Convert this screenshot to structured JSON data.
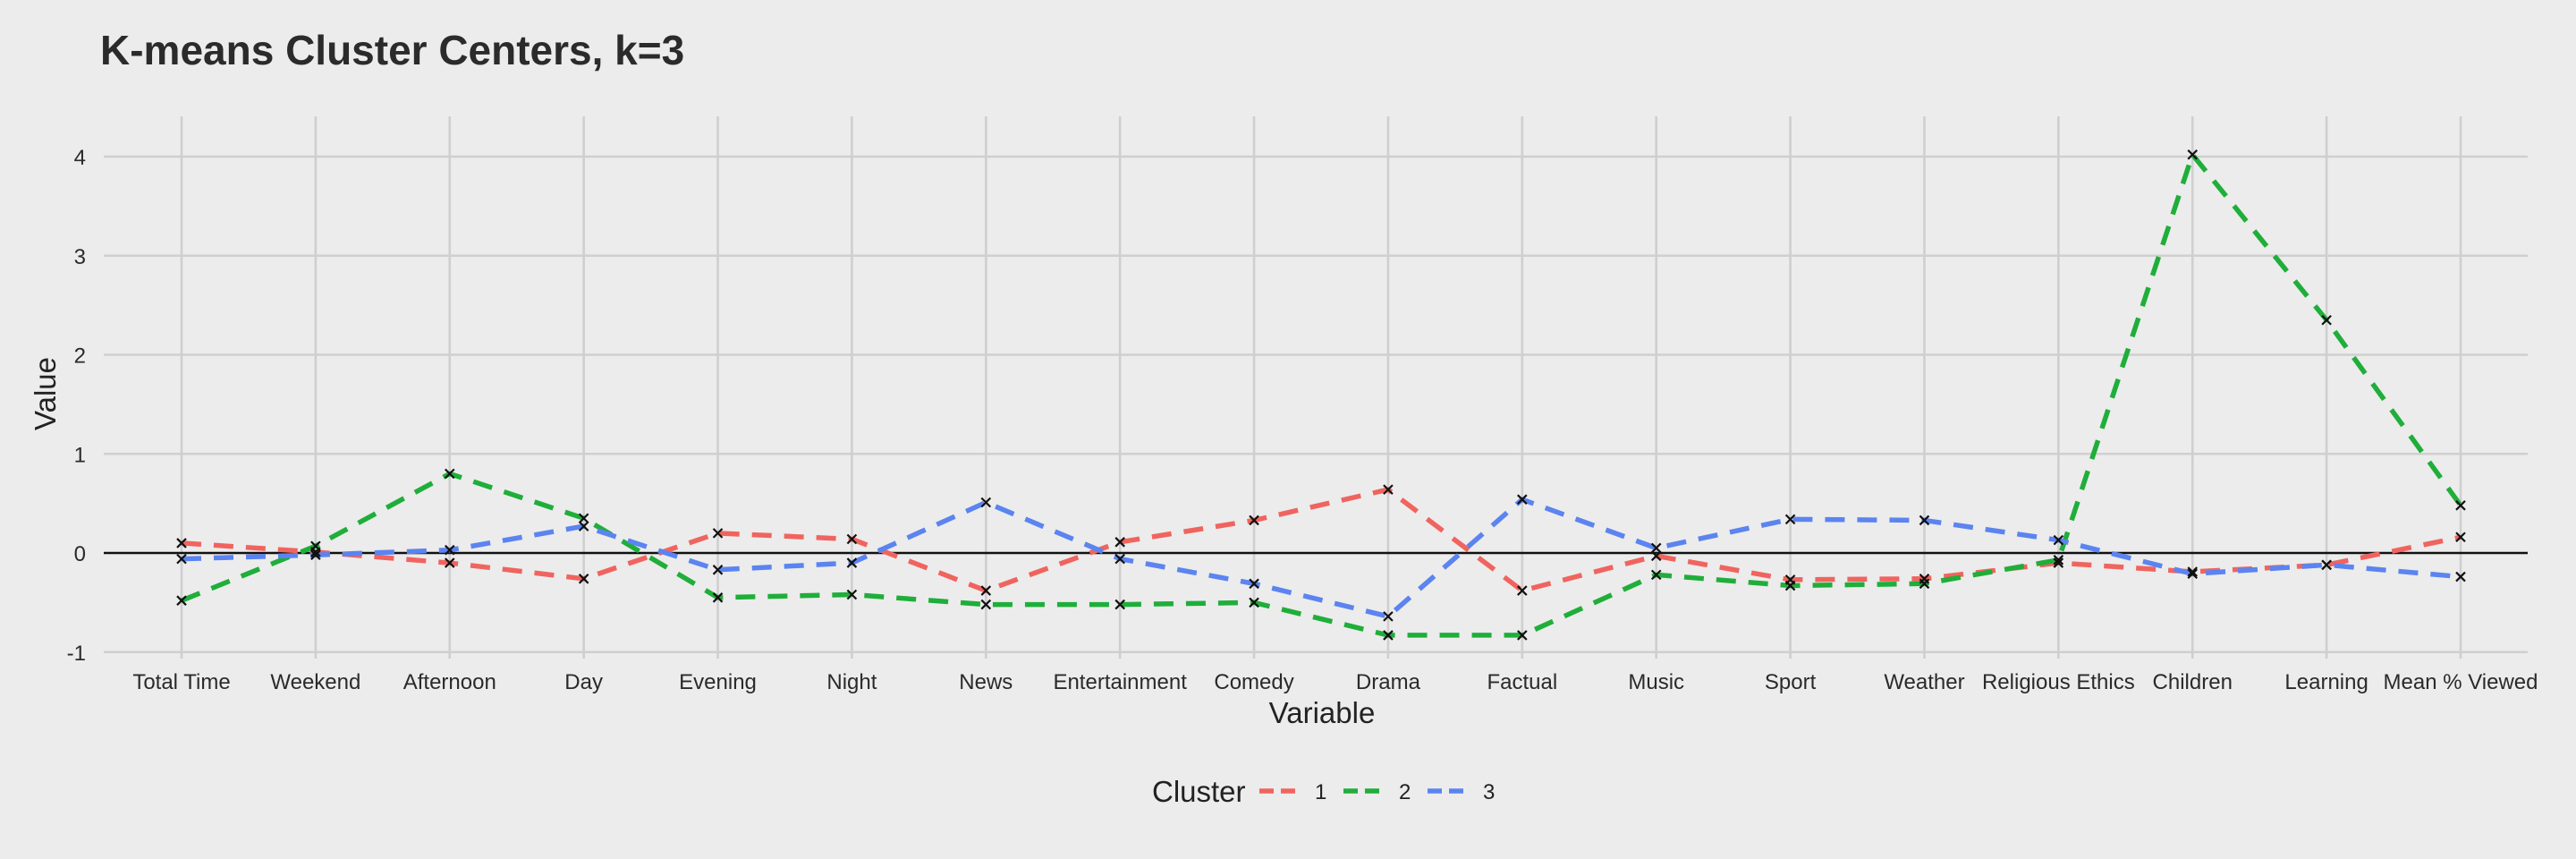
{
  "chart_data": {
    "type": "line",
    "title": "K-means Cluster Centers, k=3",
    "xlabel": "Variable",
    "ylabel": "Value",
    "ylim": [
      -1,
      4.2
    ],
    "yticks": [
      -1,
      0,
      1,
      2,
      3,
      4
    ],
    "categories": [
      "Total Time",
      "Weekend",
      "Afternoon",
      "Day",
      "Evening",
      "Night",
      "News",
      "Entertainment",
      "Comedy",
      "Drama",
      "Factual",
      "Music",
      "Sport",
      "Weather",
      "Religious Ethics",
      "Children",
      "Learning",
      "Mean % Viewed"
    ],
    "grid": true,
    "legend": {
      "title": "Cluster",
      "position": "bottom"
    },
    "series": [
      {
        "name": "1",
        "color": "#f0645f",
        "values": [
          0.1,
          0.01,
          -0.1,
          -0.26,
          0.2,
          0.14,
          -0.38,
          0.11,
          0.33,
          0.64,
          -0.38,
          -0.03,
          -0.27,
          -0.26,
          -0.1,
          -0.19,
          -0.12,
          0.16
        ]
      },
      {
        "name": "2",
        "color": "#1fae3a",
        "values": [
          -0.48,
          0.07,
          0.8,
          0.35,
          -0.45,
          -0.42,
          -0.52,
          -0.52,
          -0.5,
          -0.83,
          -0.83,
          -0.22,
          -0.33,
          -0.31,
          -0.07,
          4.02,
          2.35,
          0.48
        ]
      },
      {
        "name": "3",
        "color": "#5b84f0",
        "values": [
          -0.06,
          -0.02,
          0.03,
          0.27,
          -0.17,
          -0.1,
          0.51,
          -0.06,
          -0.31,
          -0.64,
          0.54,
          0.05,
          0.34,
          0.33,
          0.13,
          -0.21,
          -0.12,
          -0.24
        ]
      }
    ]
  }
}
